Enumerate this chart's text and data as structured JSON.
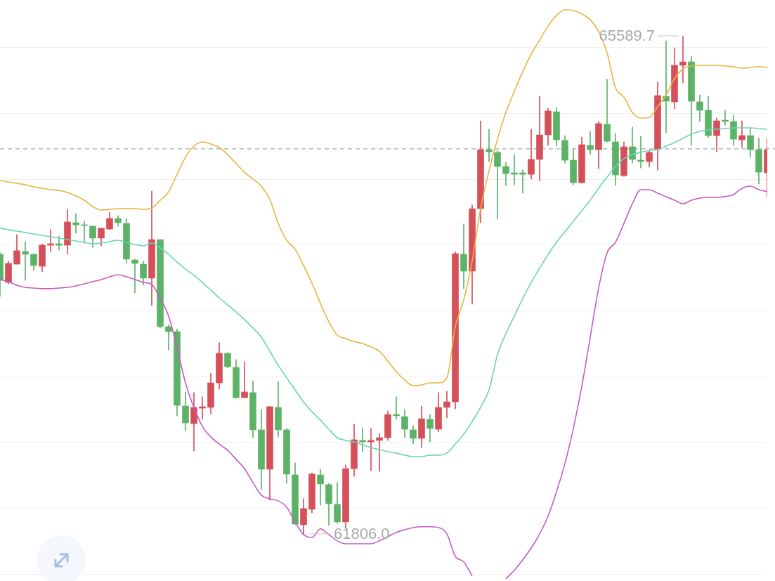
{
  "chart_data": {
    "type": "candlestick",
    "categories": [
      null,
      null,
      null,
      null,
      null,
      null,
      null,
      null,
      null,
      null,
      null,
      null,
      null,
      null,
      null,
      null,
      null,
      null,
      null,
      null,
      null,
      null,
      null,
      null,
      null,
      null,
      null,
      null,
      null,
      null,
      null,
      null,
      null,
      null,
      null,
      null,
      null,
      null,
      null,
      null,
      null,
      null,
      null,
      null,
      null,
      null,
      null,
      null,
      null,
      null,
      null,
      null,
      null,
      null,
      null,
      null,
      null,
      null,
      null,
      null,
      null,
      null,
      null,
      null,
      null,
      null,
      null,
      null,
      null,
      null,
      null,
      null,
      null,
      null,
      null,
      null,
      null,
      null,
      null,
      null,
      null,
      null,
      null,
      null,
      null,
      null,
      null,
      null,
      null,
      null,
      null,
      null
    ],
    "ohlc": [
      [
        63930,
        63941,
        63610,
        63738
      ],
      [
        63717,
        63877,
        63706,
        63861
      ],
      [
        63855,
        64079,
        63855,
        63957
      ],
      [
        63951,
        64026,
        63733,
        63930
      ],
      [
        63930,
        63935,
        63807,
        63845
      ],
      [
        63839,
        64010,
        63797,
        63999
      ],
      [
        63999,
        64117,
        63951,
        64010
      ],
      [
        64010,
        64069,
        63962,
        63999
      ],
      [
        63999,
        64272,
        63930,
        64176
      ],
      [
        64170,
        64240,
        64090,
        64154
      ],
      [
        64154,
        64181,
        64015,
        64149
      ],
      [
        64144,
        64144,
        63983,
        64053
      ],
      [
        64053,
        64128,
        63994,
        64128
      ],
      [
        64122,
        64250,
        64117,
        64202
      ],
      [
        64202,
        64224,
        64144,
        64170
      ],
      [
        64165,
        64202,
        63861,
        63893
      ],
      [
        63887,
        63893,
        63637,
        63861
      ],
      [
        63855,
        63877,
        63695,
        63749
      ],
      [
        63749,
        64410,
        63541,
        64042
      ],
      [
        64042,
        64042,
        63370,
        63380
      ],
      [
        63380,
        63396,
        63204,
        63343
      ],
      [
        63343,
        63364,
        62703,
        62783
      ],
      [
        62777,
        62884,
        62591,
        62649
      ],
      [
        62644,
        62879,
        62436,
        62767
      ],
      [
        62761,
        62847,
        62676,
        62772
      ],
      [
        62767,
        63028,
        62719,
        62953
      ],
      [
        62953,
        63258,
        62905,
        63178
      ],
      [
        63178,
        63183,
        63066,
        63076
      ],
      [
        63071,
        63130,
        62836,
        62841
      ],
      [
        62841,
        63114,
        62841,
        62884
      ],
      [
        62879,
        62969,
        62537,
        62596
      ],
      [
        62596,
        62751,
        62142,
        62297
      ],
      [
        62297,
        62772,
        62062,
        62772
      ],
      [
        62767,
        62964,
        62543,
        62596
      ],
      [
        62596,
        62607,
        62190,
        62260
      ],
      [
        62254,
        62345,
        61875,
        61881
      ],
      [
        61875,
        62073,
        61806.0,
        61998
      ],
      [
        61993,
        62270,
        61966,
        62260
      ],
      [
        62254,
        62297,
        62025,
        62185
      ],
      [
        62180,
        62190,
        61870,
        62036
      ],
      [
        62030,
        62196,
        61886,
        61897
      ],
      [
        61897,
        62329,
        61849,
        62302
      ],
      [
        62302,
        62639,
        62244,
        62521
      ],
      [
        62516,
        62612,
        62430,
        62505
      ],
      [
        62505,
        62607,
        62286,
        62516
      ],
      [
        62516,
        62569,
        62281,
        62537
      ],
      [
        62537,
        62740,
        62516,
        62713
      ],
      [
        62713,
        62847,
        62676,
        62703
      ],
      [
        62697,
        62751,
        62537,
        62601
      ],
      [
        62596,
        62628,
        62489,
        62532
      ],
      [
        62532,
        62777,
        62462,
        62681
      ],
      [
        62676,
        62713,
        62505,
        62607
      ],
      [
        62601,
        62879,
        62580,
        62767
      ],
      [
        62767,
        62889,
        62687,
        62809
      ],
      [
        62809,
        63951,
        62756,
        63935
      ],
      [
        63930,
        64160,
        63669,
        63802
      ],
      [
        63802,
        64304,
        63551,
        64277
      ],
      [
        64277,
        64944,
        64170,
        64725
      ],
      [
        64725,
        64880,
        64635,
        64709
      ],
      [
        64704,
        64715,
        64197,
        64597
      ],
      [
        64597,
        64629,
        64453,
        64544
      ],
      [
        64549,
        64688,
        64458,
        64538
      ],
      [
        64549,
        64570,
        64394,
        64538
      ],
      [
        64538,
        64880,
        64501,
        64651
      ],
      [
        64651,
        65131,
        64490,
        64837
      ],
      [
        64837,
        65040,
        64757,
        65019
      ],
      [
        65013,
        65045,
        64752,
        64800
      ],
      [
        64795,
        64832,
        64624,
        64645
      ],
      [
        64645,
        64725,
        64458,
        64474
      ],
      [
        64474,
        64821,
        64469,
        64763
      ],
      [
        64757,
        64864,
        64688,
        64725
      ],
      [
        64725,
        64939,
        64581,
        64923
      ],
      [
        64917,
        65259,
        64784,
        64789
      ],
      [
        64784,
        64848,
        64453,
        64533
      ],
      [
        64528,
        64784,
        64522,
        64747
      ],
      [
        64747,
        64896,
        64624,
        64651
      ],
      [
        64645,
        64827,
        64586,
        64635
      ],
      [
        64635,
        64715,
        64592,
        64704
      ],
      [
        64725,
        65238,
        64570,
        65136
      ],
      [
        65131,
        65552,
        64853,
        65093
      ],
      [
        65088,
        65499,
        65035,
        65366
      ],
      [
        65366,
        65589.7,
        65232,
        65392
      ],
      [
        65392,
        65435,
        64757,
        65093
      ],
      [
        65088,
        65141,
        64939,
        65024
      ],
      [
        65024,
        65131,
        64816,
        64832
      ],
      [
        64832,
        64965,
        64709,
        64944
      ],
      [
        64949,
        65024,
        64912,
        64939
      ],
      [
        64939,
        64987,
        64757,
        64805
      ],
      [
        64800,
        64944,
        64741,
        64832
      ],
      [
        64832,
        64885,
        64667,
        64725
      ],
      [
        64725,
        64811,
        64464,
        64554
      ],
      [
        64549,
        64811,
        64368,
        64725
      ]
    ],
    "colors": [
      "#5cb367",
      "#d5505a",
      "#d5505a",
      "#5cb367",
      "#5cb367",
      "#d5505a",
      "#d5505a",
      "#5cb367",
      "#d5505a",
      "#5cb367",
      "#5cb367",
      "#5cb367",
      "#d5505a",
      "#d5505a",
      "#5cb367",
      "#5cb367",
      "#5cb367",
      "#5cb367",
      "#d5505a",
      "#5cb367",
      "#5cb367",
      "#5cb367",
      "#5cb367",
      "#d5505a",
      "#d5505a",
      "#d5505a",
      "#d5505a",
      "#5cb367",
      "#5cb367",
      "#d5505a",
      "#5cb367",
      "#5cb367",
      "#d5505a",
      "#5cb367",
      "#5cb367",
      "#5cb367",
      "#d5505a",
      "#d5505a",
      "#5cb367",
      "#5cb367",
      "#5cb367",
      "#d5505a",
      "#d5505a",
      "#5cb367",
      "#d5505a",
      "#d5505a",
      "#d5505a",
      "#5cb367",
      "#5cb367",
      "#5cb367",
      "#d5505a",
      "#5cb367",
      "#d5505a",
      "#d5505a",
      "#d5505a",
      "#5cb367",
      "#d5505a",
      "#d5505a",
      "#5cb367",
      "#5cb367",
      "#5cb367",
      "#5cb367",
      "#5cb367",
      "#d5505a",
      "#d5505a",
      "#d5505a",
      "#5cb367",
      "#5cb367",
      "#5cb367",
      "#d5505a",
      "#5cb367",
      "#d5505a",
      "#5cb367",
      "#5cb367",
      "#d5505a",
      "#5cb367",
      "#5cb367",
      "#d5505a",
      "#d5505a",
      "#5cb367",
      "#d5505a",
      "#d5505a",
      "#5cb367",
      "#5cb367",
      "#5cb367",
      "#d5505a",
      "#5cb367",
      "#5cb367",
      "#d5505a",
      "#5cb367",
      "#5cb367",
      "#d5505a"
    ],
    "series": [
      {
        "type": "line",
        "color": "#e6b53c",
        "values": [
          64490,
          64480,
          64469,
          64458,
          64442,
          64432,
          64421,
          64416,
          64400,
          64373,
          64341,
          64293,
          64266,
          64272,
          64277,
          64277,
          64277,
          64272,
          64282,
          64341,
          64405,
          64538,
          64667,
          64752,
          64784,
          64768,
          64741,
          64688,
          64619,
          64554,
          64501,
          64448,
          64346,
          64165,
          64037,
          63968,
          63845,
          63711,
          63557,
          63418,
          63316,
          63290,
          63268,
          63252,
          63226,
          63194,
          63119,
          63039,
          62975,
          62932,
          62937,
          62953,
          62953,
          62991,
          63380,
          63583,
          63877,
          64277,
          64565,
          64805,
          65008,
          65168,
          65318,
          65451,
          65558,
          65664,
          65745,
          65787,
          65782,
          65755,
          65713,
          65622,
          65462,
          65195,
          65125,
          65008,
          64965,
          64971,
          65051,
          65141,
          65264,
          65339,
          65360,
          65366,
          65366,
          65366,
          65360,
          65355,
          65344,
          65350,
          65355,
          65350
        ]
      },
      {
        "type": "line",
        "color": "#6dd3b8",
        "values": [
          64128,
          64117,
          64106,
          64096,
          64085,
          64074,
          64063,
          64053,
          64042,
          64031,
          64021,
          64010,
          64015,
          64026,
          64037,
          64021,
          64005,
          63994,
          64015,
          63978,
          63930,
          63871,
          63818,
          63770,
          63717,
          63658,
          63599,
          63546,
          63492,
          63434,
          63370,
          63300,
          63194,
          63087,
          62991,
          62900,
          62809,
          62735,
          62671,
          62601,
          62537,
          62516,
          62505,
          62484,
          62462,
          62446,
          62430,
          62420,
          62404,
          62393,
          62393,
          62404,
          62404,
          62420,
          62489,
          62564,
          62660,
          62767,
          62900,
          63167,
          63327,
          63460,
          63594,
          63717,
          63823,
          63930,
          64021,
          64101,
          64181,
          64261,
          64341,
          64432,
          64517,
          64597,
          64656,
          64688,
          64704,
          64720,
          64725,
          64752,
          64779,
          64811,
          64843,
          64864,
          64875,
          64880,
          64885,
          64891,
          64891,
          64891,
          64885,
          64880
        ]
      },
      {
        "type": "line",
        "color": "#c65bc4",
        "values": [
          63738,
          63722,
          63695,
          63679,
          63674,
          63669,
          63669,
          63674,
          63679,
          63690,
          63706,
          63722,
          63738,
          63759,
          63775,
          63759,
          63738,
          63717,
          63701,
          63594,
          63460,
          63220,
          62953,
          62767,
          62623,
          62543,
          62489,
          62441,
          62372,
          62302,
          62196,
          62100,
          62073,
          62057,
          62009,
          61897,
          61801,
          61779,
          61844,
          61801,
          61753,
          61731,
          61731,
          61731,
          61731,
          61753,
          61785,
          61817,
          61838,
          61854,
          61860,
          61860,
          61854,
          61806,
          61635,
          61593,
          61486,
          null,
          null,
          null,
          61465,
          61529,
          61609,
          61699,
          61806,
          61940,
          62126,
          62340,
          62607,
          62927,
          63300,
          63674,
          63941,
          64021,
          64165,
          64314,
          64421,
          64421,
          64394,
          64368,
          64341,
          64314,
          64341,
          64357,
          64362,
          64362,
          64368,
          64384,
          64432,
          64448,
          64421,
          64405
        ]
      }
    ],
    "ylim": [
      61448,
      65862
    ],
    "yticks": [
      {
        "value": 61500,
        "label": null
      },
      {
        "value": 62000,
        "label": null
      },
      {
        "value": 62500,
        "label": null
      },
      {
        "value": 63000,
        "label": null
      },
      {
        "value": 63500,
        "label": null
      },
      {
        "value": 64000,
        "label": null
      },
      {
        "value": 64500,
        "label": null
      },
      {
        "value": 65000,
        "label": null
      },
      {
        "value": 65500,
        "label": null
      }
    ],
    "grid": "y",
    "tick_labels": false,
    "marker": "none",
    "ref_lines": [
      {
        "axis": "y",
        "value": 64731,
        "color": "#a8a8a8",
        "line_style": "dashed"
      }
    ],
    "annotations": [
      "65589.7",
      "61806.0"
    ]
  }
}
